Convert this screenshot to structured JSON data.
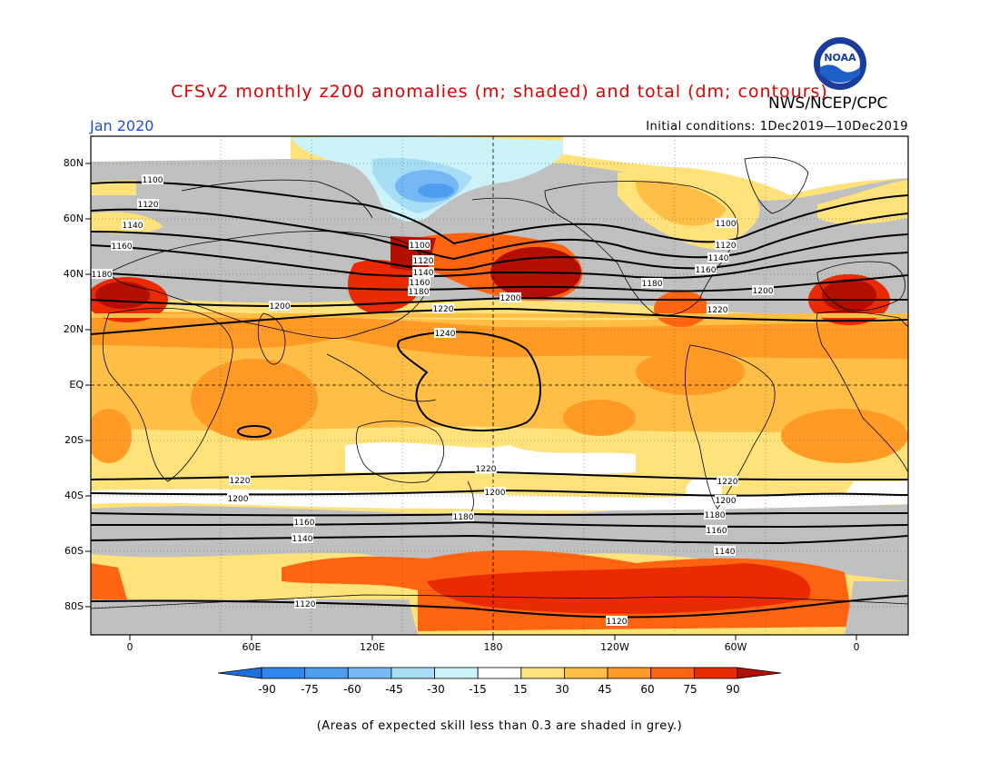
{
  "header": {
    "title": "CFSv2 monthly z200 anomalies (m; shaded) and total (dm; contours)",
    "agency": "NWS/NCEP/CPC",
    "logo_text": "NOAA",
    "month": "Jan 2020",
    "initial_conditions": "Initial conditions: 1Dec2019—10Dec2019"
  },
  "map": {
    "lat_labels": [
      "80N",
      "60N",
      "40N",
      "20N",
      "EQ",
      "20S",
      "40S",
      "60S",
      "80S"
    ],
    "lon_labels": [
      "0",
      "60E",
      "120E",
      "180",
      "120W",
      "60W",
      "0"
    ],
    "contour_labels": [
      "1100",
      "1120",
      "1140",
      "1160",
      "1180",
      "1200",
      "1220",
      "1240"
    ],
    "colors": {
      "grey_mask": "#c0c0c0",
      "land_outline": "#000000"
    }
  },
  "colorbar": {
    "labels": [
      "-90",
      "-75",
      "-60",
      "-45",
      "-30",
      "-15",
      "15",
      "30",
      "45",
      "60",
      "75",
      "90"
    ],
    "colors": [
      "#1e6ee0",
      "#2f86ec",
      "#4d9df0",
      "#76b8f5",
      "#a7dcf5",
      "#cdf3fa",
      "#ffffff",
      "#ffe27a",
      "#ffbe45",
      "#ff9a25",
      "#ff6410",
      "#ea2a00",
      "#b30f00"
    ]
  },
  "footnote": "(Areas of expected skill less than 0.3 are shaded in grey.)"
}
